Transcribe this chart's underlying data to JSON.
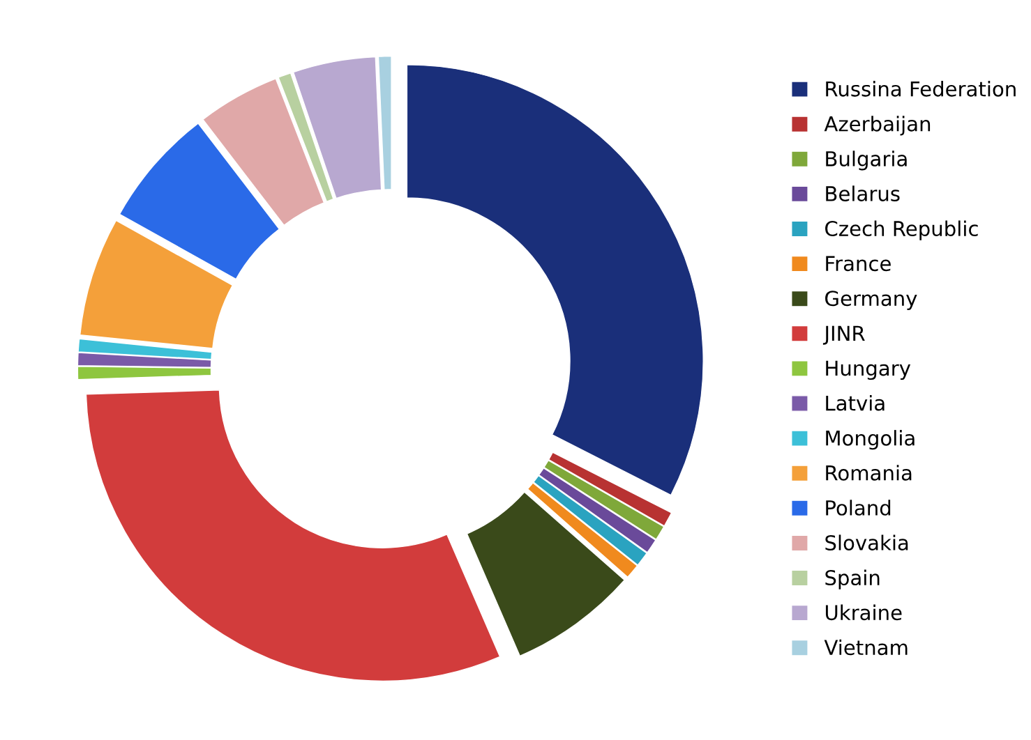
{
  "chart_data": {
    "type": "donut",
    "categories": [
      "Russina Federation",
      "Azerbaijan",
      "Bulgaria",
      "Belarus",
      "Czech Republic",
      "France",
      "Germany",
      "JINR",
      "Hungary",
      "Latvia",
      "Mongolia",
      "Romania",
      "Poland",
      "Slovakia",
      "Spain",
      "Ukraine",
      "Vietnam"
    ],
    "values": [
      32.5,
      0.8,
      0.8,
      0.8,
      0.8,
      0.8,
      7,
      31,
      0.7,
      0.7,
      0.7,
      6.5,
      6.5,
      4.5,
      0.7,
      4.5,
      0.7
    ],
    "colors": [
      "#1a2f7a",
      "#b83232",
      "#7fa83a",
      "#6a4a9a",
      "#2aa3c0",
      "#f08a1e",
      "#3a4a1a",
      "#d23c3c",
      "#8ec63f",
      "#7a5aa8",
      "#3cc0d8",
      "#f4a03a",
      "#2a6ae8",
      "#e0a8a8",
      "#b8d0a0",
      "#b8a8d0",
      "#a8d0e0"
    ],
    "legend": "right"
  }
}
